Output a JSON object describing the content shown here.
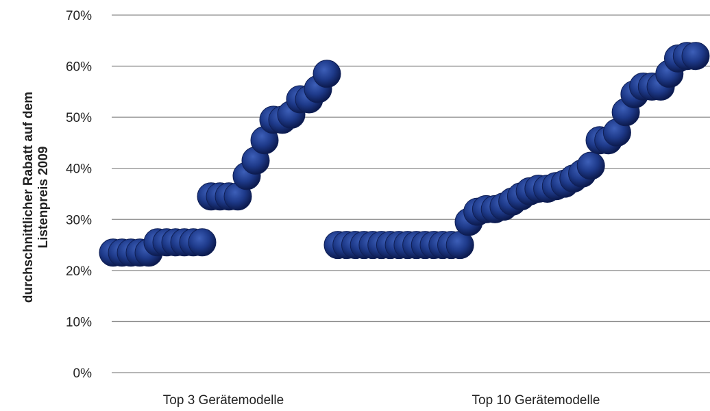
{
  "chart_data": {
    "type": "scatter",
    "title": "",
    "xlabel": "",
    "ylabel": [
      "durchschnittlicher Rabatt  auf dem",
      "Listenpreis 2009"
    ],
    "ylim": [
      0,
      70
    ],
    "yticks": [
      "0%",
      "10%",
      "20%",
      "30%",
      "40%",
      "50%",
      "60%",
      "70%"
    ],
    "grid": true,
    "categories": [
      "Top 3 Gerätemodelle",
      "Top 10 Gerätemodelle"
    ],
    "point_color": "#1e3a8a",
    "point_edge_color": "#0f1f55",
    "series": [
      {
        "category": "Top 3 Gerätemodelle",
        "values": [
          23.5,
          23.5,
          23.5,
          23.5,
          23.5,
          25.5,
          25.5,
          25.5,
          25.5,
          25.5,
          25.5,
          34.5,
          34.5,
          34.5,
          34.5,
          38.5,
          41.5,
          45.5,
          49.5,
          49.5,
          50.5,
          53.5,
          53.5,
          55.5,
          58.5
        ]
      },
      {
        "category": "Top 10 Gerätemodelle",
        "values": [
          25,
          25,
          25,
          25,
          25,
          25,
          25,
          25,
          25,
          25,
          25,
          25,
          25,
          25,
          25,
          29.5,
          31.5,
          32,
          32,
          32.5,
          33.5,
          34.5,
          35.5,
          36,
          36,
          36.5,
          37,
          38,
          39,
          40.5,
          45.5,
          45.5,
          47,
          51,
          54.5,
          56,
          56,
          56,
          58.5,
          61.5,
          62,
          62
        ]
      }
    ]
  }
}
